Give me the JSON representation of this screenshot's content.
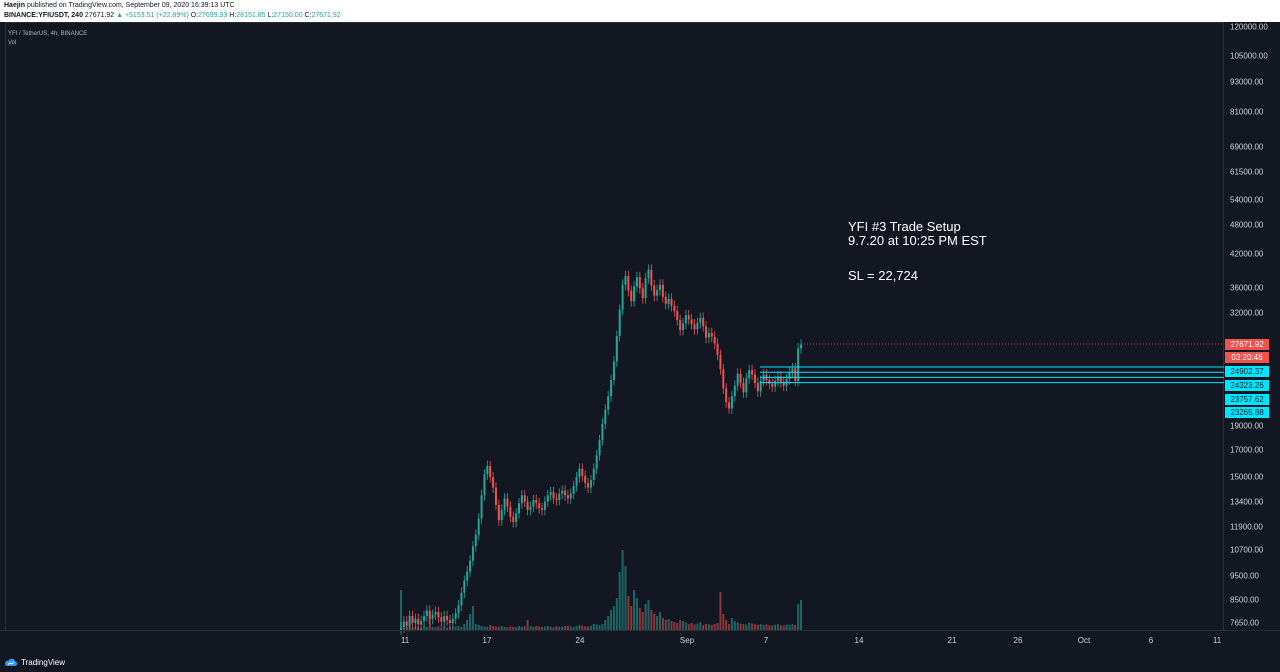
{
  "header": {
    "publisher": "Haejin",
    "published_text": "published on TradingView.com, September 09, 2020 16:39:13 UTC",
    "symbol_line": "BINANCE:YFIUSDT, 240",
    "last": "27671.92",
    "change": "▲ +5153.51 (+22.89%)",
    "o_label": "O:",
    "o": "27699.93",
    "h_label": "H:",
    "h": "28151.85",
    "l_label": "L:",
    "l": "27150.00",
    "c_label": "C:",
    "c": "27671.92"
  },
  "legend": {
    "title": "YFI / TetherUS, 4h, BINANCE",
    "vol": "Vol"
  },
  "annotation": {
    "line1": "YFI #3 Trade Setup",
    "line2": "9.7.20 at 10:25 PM EST",
    "sl": "SL = 22,724"
  },
  "price_tags": {
    "last": "27671.92",
    "countdown": "03:20:48",
    "l1": "24902.37",
    "l2": "24323.26",
    "l3": "23757.62",
    "l4": "23265.88"
  },
  "colors": {
    "background": "#131722",
    "up": "#26a69a",
    "down": "#ef5350",
    "level_line": "#00e5ff",
    "last_tag": "#ef5350",
    "level_tag": "#00e5ff"
  },
  "footer": {
    "brand": "TradingView",
    "icon": "tradingview-cloud-icon"
  },
  "chart_data": {
    "type": "candlestick",
    "symbol": "YFI / TetherUS",
    "interval": "4h",
    "exchange": "BINANCE",
    "y_scale": "log",
    "y_ticks": [
      "120000.00",
      "105000.00",
      "93000.00",
      "81000.00",
      "69000.00",
      "61500.00",
      "54000.00",
      "48000.00",
      "42000.00",
      "36000.00",
      "32000.00",
      "27671.92",
      "24902.37",
      "24323.26",
      "23757.62",
      "23265.88",
      "19000.00",
      "17000.00",
      "15000.00",
      "13400.00",
      "11900.00",
      "10700.00",
      "9500.00",
      "8500.00",
      "7650.00"
    ],
    "x_ticks": [
      "11",
      "17",
      "24",
      "Sep",
      "7",
      "14",
      "21",
      "26",
      "Oct",
      "6",
      "11"
    ],
    "horizontal_levels": [
      24902.37,
      24323.26,
      23757.62,
      23265.88
    ],
    "last_price": 27671.92,
    "close_series": [
      7500,
      7700,
      7550,
      7900,
      7650,
      7800,
      7600,
      7720,
      7900,
      8100,
      7800,
      7950,
      8050,
      7850,
      7700,
      7900,
      7750,
      7650,
      7800,
      8000,
      8300,
      8800,
      9300,
      9700,
      10200,
      10900,
      11500,
      12400,
      13800,
      15200,
      15800,
      15000,
      14300,
      13200,
      12300,
      12900,
      13600,
      13100,
      12500,
      12200,
      12700,
      13300,
      13800,
      13400,
      12900,
      13100,
      13500,
      13300,
      13000,
      12900,
      13400,
      13800,
      14000,
      13600,
      13500,
      13900,
      14100,
      13800,
      13600,
      13900,
      14400,
      15000,
      15600,
      15100,
      14600,
      14300,
      14800,
      15600,
      16600,
      17800,
      19200,
      20500,
      21800,
      23500,
      25600,
      28800,
      32500,
      36500,
      38000,
      35500,
      33800,
      36200,
      37800,
      35900,
      34300,
      37600,
      39100,
      36400,
      34700,
      35600,
      36500,
      34500,
      33400,
      34200,
      33100,
      32300,
      31000,
      29600,
      30500,
      31700,
      31100,
      30400,
      29700,
      30600,
      31300,
      30100,
      28600,
      29200,
      28700,
      27800,
      26400,
      24700,
      22600,
      21200,
      20600,
      21800,
      22900,
      24200,
      23200,
      22200,
      23700,
      24600,
      24100,
      23200,
      22300,
      23400,
      24100,
      23500,
      23100,
      22800,
      23400,
      23900,
      23300,
      22900,
      23600,
      24300,
      24800,
      23400,
      27200,
      27672
    ],
    "volume_series": [
      9600,
      7700,
      7750,
      7800,
      7720,
      7760,
      7740,
      7710,
      7800,
      7750,
      8200,
      7760,
      7740,
      7780,
      7730,
      7760,
      7720,
      7750,
      7740,
      7780,
      7800,
      7760,
      7900,
      8100,
      8400,
      8800,
      7900,
      7850,
      7800,
      7770,
      7760,
      7850,
      7800,
      7780,
      7760,
      7800,
      7750,
      7740,
      7770,
      7760,
      7740,
      7800,
      7760,
      7780,
      8100,
      7790,
      7760,
      7800,
      7770,
      7760,
      7780,
      7800,
      7760,
      7740,
      7790,
      7770,
      7760,
      7800,
      7810,
      7780,
      7760,
      7800,
      7850,
      7820,
      7790,
      7780,
      7820,
      7900,
      7880,
      7850,
      7900,
      8100,
      8300,
      8600,
      8800,
      9200,
      10500,
      11600,
      10800,
      9300,
      8800,
      9600,
      9200,
      8700,
      8500,
      8900,
      9100,
      8600,
      8400,
      8300,
      8500,
      8200,
      8100,
      8150,
      8050,
      8000,
      7950,
      8100,
      8050,
      7980,
      7900,
      7950,
      7880,
      7920,
      8000,
      7850,
      7900,
      7880,
      7860,
      7900,
      7950,
      9500,
      8400,
      8100,
      7900,
      8200,
      8050,
      7980,
      7920,
      7900,
      7880,
      7960,
      7920,
      7880,
      7860,
      7900,
      7850,
      7880,
      7840,
      7820,
      7860,
      7900,
      7840,
      7830,
      7880,
      7860,
      7900,
      7850,
      8900,
      9100
    ]
  }
}
